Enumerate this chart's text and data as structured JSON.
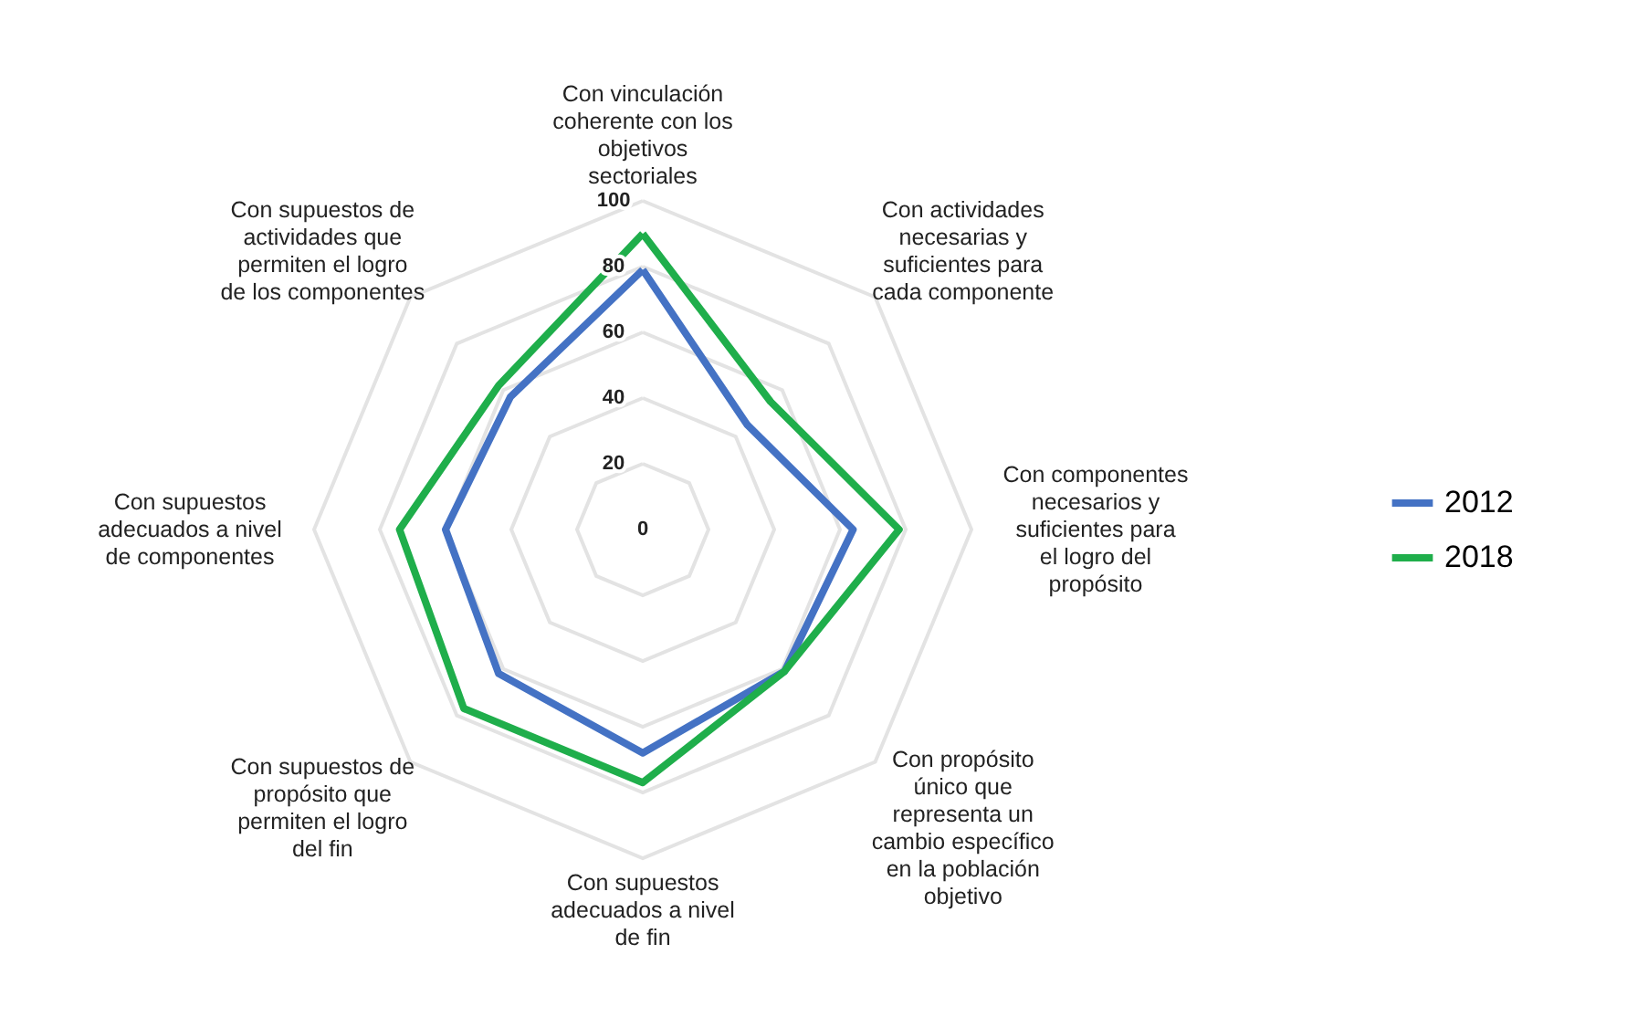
{
  "chart_data": {
    "type": "radar",
    "categories": [
      "Con vinculación coherente con los objetivos sectoriales",
      "Con actividades necesarias y suficientes para cada componente",
      "Con componentes necesarios y suficientes para el logro del propósito",
      "Con propósito único que representa un cambio específico en la población objetivo",
      "Con supuestos adecuados a nivel de fin",
      "Con supuestos de propósito que permiten el logro del fin",
      "Con supuestos adecuados a nivel de componentes",
      "Con supuestos de actividades que permiten el logro de los componentes"
    ],
    "series": [
      {
        "name": "2012",
        "color": "#4472c4",
        "values": [
          79,
          45,
          64,
          61,
          68,
          62,
          60,
          57
        ]
      },
      {
        "name": "2018",
        "color": "#1fae4b",
        "values": [
          90,
          55,
          78,
          61,
          77,
          77,
          74,
          62
        ]
      }
    ],
    "ylim": [
      0,
      100
    ],
    "yticks": [
      0,
      20,
      40,
      60,
      80,
      100
    ],
    "grid": true,
    "legend": "right"
  }
}
